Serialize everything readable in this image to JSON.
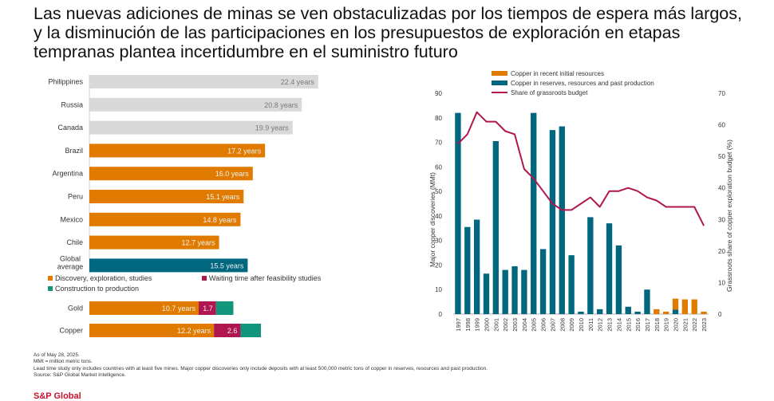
{
  "title": "Las nuevas adiciones de minas se ven obstaculizadas por los tiempos de espera más largos, y la disminución de las participaciones en los presupuestos de exploración en etapas tempranas plantea incertidumbre en el suministro futuro",
  "colors": {
    "orange": "#e07b00",
    "teal": "#00677f",
    "grey": "#d9d9d9",
    "crimson": "#b0164f",
    "green": "#12957a",
    "text_on_bar": "#f0f0f0",
    "grey_bar_text": "#7a7a7a"
  },
  "chart_data": [
    {
      "type": "bar",
      "orientation": "horizontal",
      "categories": [
        "Philippines",
        "Russia",
        "Canada",
        "Brazil",
        "Argentina",
        "Peru",
        "Mexico",
        "Chile",
        "Global average"
      ],
      "category_lines": [
        [
          "Philippines"
        ],
        [
          "Russia"
        ],
        [
          "Canada"
        ],
        [
          "Brazil"
        ],
        [
          "Argentina"
        ],
        [
          "Peru"
        ],
        [
          "Mexico"
        ],
        [
          "Chile"
        ],
        [
          "Global",
          "average"
        ]
      ],
      "values": [
        22.4,
        20.8,
        19.9,
        17.2,
        16.0,
        15.1,
        14.8,
        12.7,
        15.5
      ],
      "labels": [
        "22.4 years",
        "20.8 years",
        "19.9 years",
        "17.2 years",
        "16.0 years",
        "15.1 years",
        "14.8 years",
        "12.7 years",
        "15.5 years"
      ],
      "fill": [
        "grey",
        "grey",
        "grey",
        "orange",
        "orange",
        "orange",
        "orange",
        "orange",
        "teal"
      ],
      "xlim": [
        0,
        25
      ]
    },
    {
      "type": "bar",
      "orientation": "horizontal",
      "stacked": true,
      "categories": [
        "Gold",
        "Copper"
      ],
      "legend": [
        {
          "name": "Discovery, exploration, studies",
          "color": "orange"
        },
        {
          "name": "Waiting time after feasibility studies",
          "color": "crimson"
        },
        {
          "name": "Construction to production",
          "color": "green"
        }
      ],
      "series": [
        {
          "name": "Discovery, exploration, studies",
          "values": [
            10.7,
            12.2
          ],
          "labels": [
            "10.7 years",
            "12.2 years"
          ],
          "color": "orange"
        },
        {
          "name": "Waiting time after feasibility studies",
          "values": [
            1.7,
            2.6
          ],
          "labels": [
            "1.7",
            "2.6"
          ],
          "color": "crimson"
        },
        {
          "name": "Construction to production",
          "values": [
            1.7,
            2.0
          ],
          "labels": [
            "",
            ""
          ],
          "color": "green"
        }
      ],
      "xlim": [
        0,
        25
      ]
    },
    {
      "type": "bar",
      "combo": "bar+line",
      "legend_position": "top-left",
      "x": [
        "1997",
        "1998",
        "1999",
        "2000",
        "2001",
        "2002",
        "2003",
        "2004",
        "2005",
        "2006",
        "2007",
        "2008",
        "2009",
        "2010",
        "2011",
        "2012",
        "2013",
        "2014",
        "2015",
        "2016",
        "2017",
        "2018",
        "2019",
        "2020",
        "2021",
        "2022",
        "2023"
      ],
      "series": [
        {
          "name": "Copper in recent initial resources",
          "kind": "bar",
          "color": "orange",
          "values": [
            0,
            0,
            0,
            0,
            0,
            0,
            0,
            0,
            0,
            0,
            0,
            0,
            0,
            0,
            0,
            0,
            0,
            0,
            0,
            0,
            0,
            2,
            1,
            4.5,
            6,
            6,
            1
          ]
        },
        {
          "name": "Copper in reserves, resources and past production",
          "kind": "bar",
          "color": "teal",
          "values": [
            82,
            35.5,
            38.5,
            16.5,
            70.5,
            18,
            19.5,
            18,
            82,
            26.5,
            75,
            76.5,
            24,
            1,
            39.5,
            2,
            37,
            28,
            3,
            1,
            10,
            0,
            0,
            1.8,
            0,
            0,
            0
          ]
        },
        {
          "name": "Share of grassroots budget",
          "kind": "line",
          "axis": "right",
          "color": "crimson",
          "values": [
            54,
            57,
            64,
            61,
            61,
            58,
            57,
            46,
            43,
            39,
            35,
            33,
            33,
            35,
            37,
            34,
            39,
            39,
            40,
            39,
            37,
            36,
            34,
            34,
            34,
            34,
            28
          ]
        }
      ],
      "ylabel": "Major copper discoveries (MMt)",
      "ylabel_right": "Grassroots share of copper exploration budget (%)",
      "ylim": [
        0,
        90
      ],
      "yticks": [
        0,
        10,
        20,
        30,
        40,
        50,
        60,
        70,
        80,
        90
      ],
      "ylim_right": [
        0,
        70
      ],
      "yticks_right": [
        0,
        10,
        20,
        30,
        40,
        50,
        60,
        70
      ]
    }
  ],
  "notes": [
    "As of May 28, 2025.",
    "MMt = million metric tons.",
    "Lead time study only includes countries with at least five mines. Major copper discoveries only include deposits with at least 500,000 metric tons of copper in reserves, resources and past production.",
    "Source: S&P Global Market Intelligence."
  ],
  "brand": "S&P Global"
}
